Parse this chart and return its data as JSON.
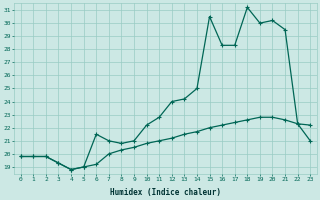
{
  "xlabel": "Humidex (Indice chaleur)",
  "background_color": "#cce8e4",
  "grid_color": "#99ccc4",
  "line_color": "#006655",
  "xlim": [
    -0.5,
    23.5
  ],
  "ylim": [
    18.5,
    31.5
  ],
  "xticks": [
    0,
    1,
    2,
    3,
    4,
    5,
    6,
    7,
    8,
    9,
    10,
    11,
    12,
    13,
    14,
    15,
    16,
    17,
    18,
    19,
    20,
    21,
    22,
    23
  ],
  "yticks": [
    19,
    20,
    21,
    22,
    23,
    24,
    25,
    26,
    27,
    28,
    29,
    30,
    31
  ],
  "x": [
    0,
    1,
    2,
    3,
    4,
    5,
    6,
    7,
    8,
    9,
    10,
    11,
    12,
    13,
    14,
    15,
    16,
    17,
    18,
    19,
    20,
    21,
    22,
    23
  ],
  "y_upper": [
    19.8,
    19.8,
    19.8,
    19.3,
    18.8,
    19.0,
    21.5,
    21.0,
    20.8,
    21.0,
    22.2,
    22.8,
    24.0,
    24.2,
    25.0,
    30.5,
    28.3,
    28.3,
    31.2,
    30.0,
    30.2,
    29.5,
    22.3,
    22.2
  ],
  "y_lower": [
    19.8,
    19.8,
    19.8,
    19.3,
    18.8,
    19.0,
    19.2,
    20.0,
    20.3,
    20.5,
    20.8,
    21.0,
    21.2,
    21.5,
    21.7,
    22.0,
    22.2,
    22.4,
    22.6,
    22.8,
    22.8,
    22.6,
    22.3,
    21.0
  ]
}
